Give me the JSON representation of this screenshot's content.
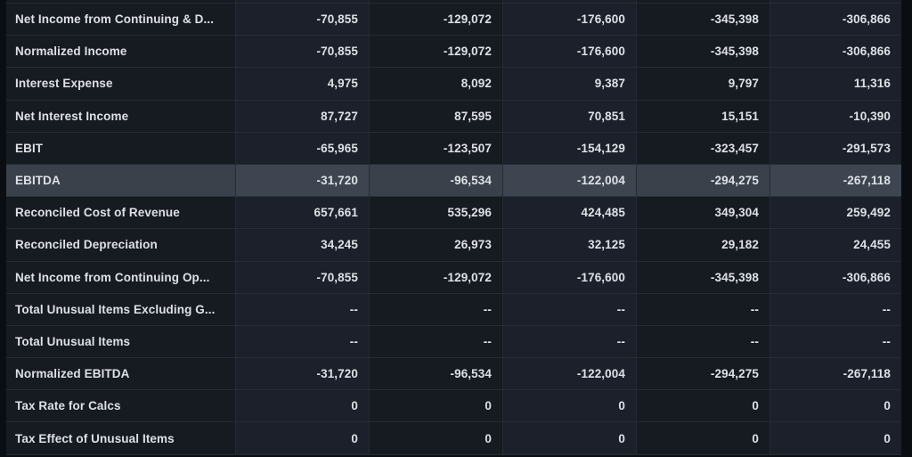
{
  "table": {
    "rows": [
      {
        "label": "Net Income from Continuing & D...",
        "values": [
          "-70,855",
          "-129,072",
          "-176,600",
          "-345,398",
          "-306,866"
        ],
        "highlighted": false
      },
      {
        "label": "Normalized Income",
        "values": [
          "-70,855",
          "-129,072",
          "-176,600",
          "-345,398",
          "-306,866"
        ],
        "highlighted": false
      },
      {
        "label": "Interest Expense",
        "values": [
          "4,975",
          "8,092",
          "9,387",
          "9,797",
          "11,316"
        ],
        "highlighted": false
      },
      {
        "label": "Net Interest Income",
        "values": [
          "87,727",
          "87,595",
          "70,851",
          "15,151",
          "-10,390"
        ],
        "highlighted": false
      },
      {
        "label": "EBIT",
        "values": [
          "-65,965",
          "-123,507",
          "-154,129",
          "-323,457",
          "-291,573"
        ],
        "highlighted": false
      },
      {
        "label": "EBITDA",
        "values": [
          "-31,720",
          "-96,534",
          "-122,004",
          "-294,275",
          "-267,118"
        ],
        "highlighted": true
      },
      {
        "label": "Reconciled Cost of Revenue",
        "values": [
          "657,661",
          "535,296",
          "424,485",
          "349,304",
          "259,492"
        ],
        "highlighted": false
      },
      {
        "label": "Reconciled Depreciation",
        "values": [
          "34,245",
          "26,973",
          "32,125",
          "29,182",
          "24,455"
        ],
        "highlighted": false
      },
      {
        "label": "Net Income from Continuing Op...",
        "values": [
          "-70,855",
          "-129,072",
          "-176,600",
          "-345,398",
          "-306,866"
        ],
        "highlighted": false
      },
      {
        "label": "Total Unusual Items Excluding G...",
        "values": [
          "--",
          "--",
          "--",
          "--",
          "--"
        ],
        "highlighted": false
      },
      {
        "label": "Total Unusual Items",
        "values": [
          "--",
          "--",
          "--",
          "--",
          "--"
        ],
        "highlighted": false
      },
      {
        "label": "Normalized EBITDA",
        "values": [
          "-31,720",
          "-96,534",
          "-122,004",
          "-294,275",
          "-267,118"
        ],
        "highlighted": false
      },
      {
        "label": "Tax Rate for Calcs",
        "values": [
          "0",
          "0",
          "0",
          "0",
          "0"
        ],
        "highlighted": false
      },
      {
        "label": "Tax Effect of Unusual Items",
        "values": [
          "0",
          "0",
          "0",
          "0",
          "0"
        ],
        "highlighted": false
      }
    ]
  },
  "colors": {
    "page_background": "#0a0d12",
    "cell_dark": "#161a21",
    "cell_light": "#1b202a",
    "row_highlight": "#3d444e",
    "border": "#272d35",
    "text": "#dde1e6"
  }
}
